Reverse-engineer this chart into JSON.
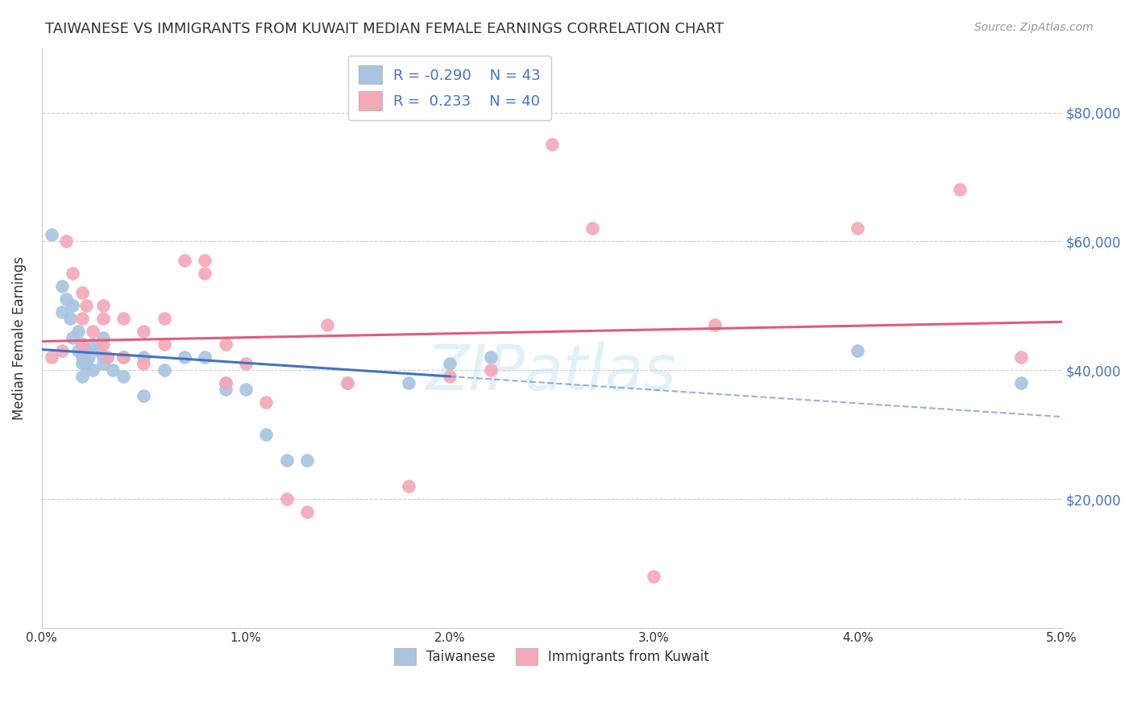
{
  "title": "TAIWANESE VS IMMIGRANTS FROM KUWAIT MEDIAN FEMALE EARNINGS CORRELATION CHART",
  "source": "Source: ZipAtlas.com",
  "ylabel": "Median Female Earnings",
  "xlim": [
    0.0,
    0.05
  ],
  "ylim": [
    0,
    90000
  ],
  "blue_color": "#a8c4e0",
  "blue_line_color": "#4472c4",
  "pink_color": "#f4a8b8",
  "pink_line_color": "#e05c7a",
  "taiwanese_x": [
    0.0005,
    0.001,
    0.001,
    0.0012,
    0.0014,
    0.0015,
    0.0015,
    0.0018,
    0.0018,
    0.002,
    0.002,
    0.002,
    0.002,
    0.0022,
    0.0022,
    0.0023,
    0.0025,
    0.0025,
    0.0028,
    0.003,
    0.003,
    0.003,
    0.0032,
    0.0035,
    0.004,
    0.004,
    0.005,
    0.005,
    0.006,
    0.007,
    0.008,
    0.009,
    0.009,
    0.01,
    0.011,
    0.012,
    0.013,
    0.015,
    0.018,
    0.02,
    0.022,
    0.04,
    0.048
  ],
  "taiwanese_y": [
    61000,
    53000,
    49000,
    51000,
    48000,
    50000,
    45000,
    46000,
    43000,
    44000,
    42000,
    41000,
    39000,
    43000,
    41000,
    42000,
    44000,
    40000,
    43000,
    45000,
    42000,
    41000,
    42000,
    40000,
    42000,
    39000,
    42000,
    36000,
    40000,
    42000,
    42000,
    38000,
    37000,
    37000,
    30000,
    26000,
    26000,
    38000,
    38000,
    41000,
    42000,
    43000,
    38000
  ],
  "kuwait_x": [
    0.0005,
    0.001,
    0.0012,
    0.0015,
    0.002,
    0.002,
    0.002,
    0.0022,
    0.0025,
    0.003,
    0.003,
    0.003,
    0.0032,
    0.004,
    0.004,
    0.005,
    0.005,
    0.006,
    0.006,
    0.007,
    0.008,
    0.008,
    0.009,
    0.009,
    0.01,
    0.011,
    0.012,
    0.013,
    0.014,
    0.015,
    0.018,
    0.02,
    0.022,
    0.025,
    0.027,
    0.03,
    0.033,
    0.04,
    0.045,
    0.048
  ],
  "kuwait_y": [
    42000,
    43000,
    60000,
    55000,
    52000,
    48000,
    44000,
    50000,
    46000,
    50000,
    48000,
    44000,
    42000,
    48000,
    42000,
    46000,
    41000,
    48000,
    44000,
    57000,
    57000,
    55000,
    38000,
    44000,
    41000,
    35000,
    20000,
    18000,
    47000,
    38000,
    22000,
    39000,
    40000,
    75000,
    62000,
    8000,
    47000,
    62000,
    68000,
    42000
  ],
  "xticks": [
    0.0,
    0.01,
    0.02,
    0.03,
    0.04,
    0.05
  ],
  "xtick_labels": [
    "0.0%",
    "1.0%",
    "2.0%",
    "3.0%",
    "4.0%",
    "5.0%"
  ],
  "yticks": [
    20000,
    40000,
    60000,
    80000
  ],
  "ytick_labels": [
    "$20,000",
    "$40,000",
    "$60,000",
    "$80,000"
  ],
  "legend1_label": "R = -0.290    N = 43",
  "legend2_label": "R =  0.233    N = 40",
  "bottom_legend1": "Taiwanese",
  "bottom_legend2": "Immigrants from Kuwait",
  "watermark": "ZIPatlas"
}
